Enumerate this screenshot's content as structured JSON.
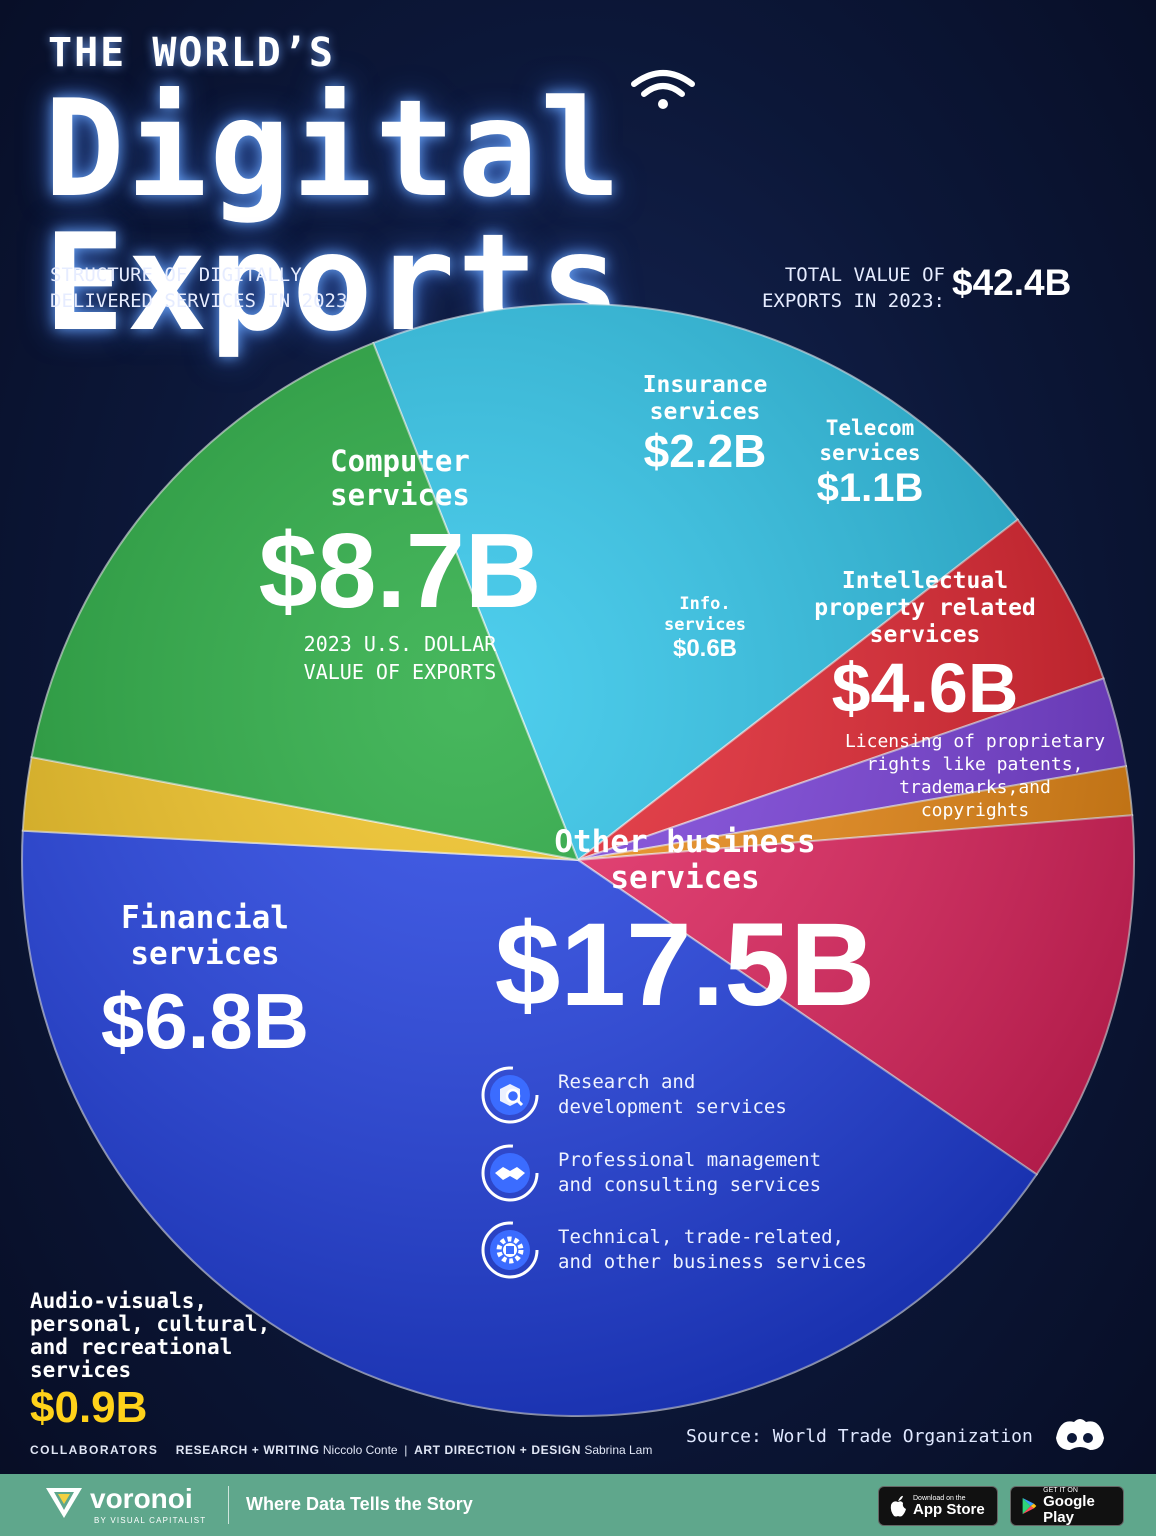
{
  "header": {
    "title_top": "THE WORLD’S",
    "title_main": "Digital Exports",
    "subtitle_line1": "STRUCTURE OF DIGITALLY",
    "subtitle_line2": "DELIVERED SERVICES IN 2023",
    "total_label_line1": "TOTAL VALUE OF",
    "total_label_line2": "EXPORTS IN 2023:",
    "total_value": "$42.4B"
  },
  "chart_data": {
    "type": "pie",
    "unit": "US$ billions",
    "total": 42.4,
    "categories": [
      "Computer services",
      "Insurance services",
      "Telecom services",
      "Info. services",
      "Intellectual property related services",
      "Other business services",
      "Audio-visuals, personal, cultural, and recreational services",
      "Financial services"
    ],
    "values": [
      8.7,
      2.2,
      1.1,
      0.6,
      4.6,
      17.5,
      0.9,
      6.8
    ],
    "colors": [
      "#28c4ea",
      "#e8212d",
      "#7b3fe0",
      "#f28c12",
      "#e8225f",
      "#1f3fe6",
      "#f2c21b",
      "#1fa83a"
    ],
    "value_labels": [
      "$8.7B",
      "$2.2B",
      "$1.1B",
      "$0.6B",
      "$4.6B",
      "$17.5B",
      "$0.9B",
      "$6.8B"
    ]
  },
  "labels": {
    "computer": {
      "line1": "Computer",
      "line2": "services",
      "value": "$8.7B",
      "note1": "2023 U.S. DOLLAR",
      "note2": "VALUE OF EXPORTS"
    },
    "insurance": {
      "line1": "Insurance",
      "line2": "services",
      "value": "$2.2B"
    },
    "telecom": {
      "line1": "Telecom",
      "line2": "services",
      "value": "$1.1B"
    },
    "info": {
      "line1": "Info.",
      "line2": "services",
      "value": "$0.6B"
    },
    "ip": {
      "line1": "Intellectual",
      "line2": "property related",
      "line3": "services",
      "value": "$4.6B",
      "desc1": "Licensing of proprietary",
      "desc2": "rights like patents,",
      "desc3": "trademarks,and",
      "desc4": "copyrights"
    },
    "other": {
      "line1": "Other business",
      "line2": "services",
      "value": "$17.5B"
    },
    "financial": {
      "line1": "Financial",
      "line2": "services",
      "value": "$6.8B"
    },
    "audio": {
      "line1": "Audio-visuals,",
      "line2": "personal, cultural,",
      "line3": "and recreational",
      "line4": "services",
      "value": "$0.9B"
    }
  },
  "other_breakdown": [
    {
      "icon": "research-icon",
      "line1": "Research and",
      "line2": "development services"
    },
    {
      "icon": "handshake-icon",
      "line1": "Professional management",
      "line2": "and consulting services"
    },
    {
      "icon": "gear-icon",
      "line1": "Technical, trade-related,",
      "line2": "and other business services"
    }
  ],
  "footer": {
    "source": "Source: World Trade Organization",
    "collaborators": "COLLABORATORS",
    "research_label": "RESEARCH + WRITING",
    "research_name": "Niccolo Conte",
    "art_label": "ART DIRECTION + DESIGN",
    "art_name": "Sabrina Lam",
    "brand": "voronoi",
    "brand_by": "BY VISUAL CAPITALIST",
    "tagline": "Where Data Tells the Story",
    "app_store_small": "Download on the",
    "app_store_big": "App Store",
    "google_small": "GET IT ON",
    "google_big": "Google Play"
  }
}
